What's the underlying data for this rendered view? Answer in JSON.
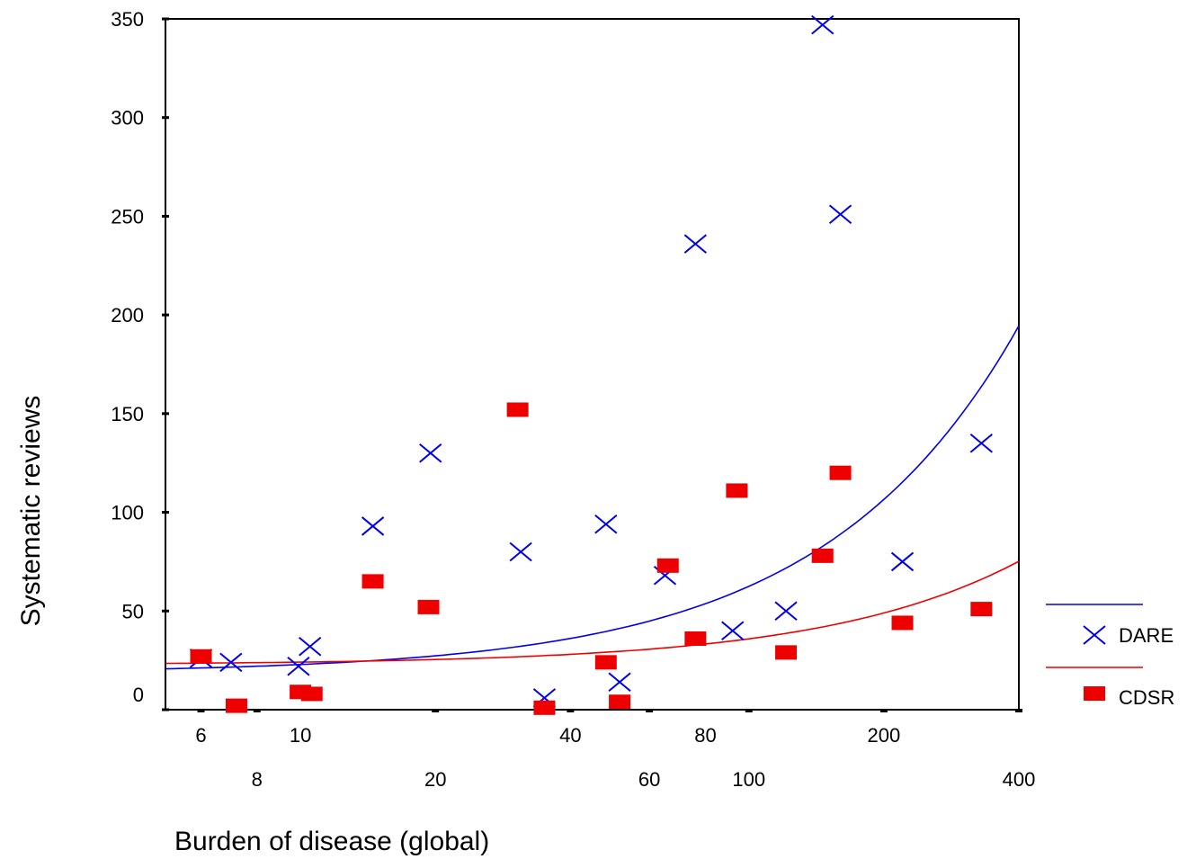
{
  "chart_data": {
    "type": "scatter",
    "xlabel": "Burden of disease (global)",
    "ylabel": "Systematic reviews",
    "x_scale": "log",
    "xlim": [
      5,
      400
    ],
    "ylim": [
      0,
      350
    ],
    "x_ticks_upper": [
      "6",
      "10",
      "40",
      "80",
      "200"
    ],
    "x_ticks_upper_values": [
      6,
      10,
      40,
      80,
      200
    ],
    "x_ticks_lower": [
      "8",
      "20",
      "60",
      "100",
      "400"
    ],
    "x_ticks_lower_values": [
      8,
      20,
      60,
      100,
      400
    ],
    "y_ticks": [
      "0",
      "50",
      "100",
      "150",
      "200",
      "250",
      "300",
      "350"
    ],
    "y_ticks_values": [
      0,
      50,
      100,
      150,
      200,
      250,
      300,
      350
    ],
    "legend_position": "right",
    "grid": false,
    "series": [
      {
        "name": "DARE",
        "marker": "x",
        "color": "#0000ee",
        "points": [
          [
            6,
            26
          ],
          [
            7,
            24
          ],
          [
            9.9,
            22
          ],
          [
            10.5,
            32
          ],
          [
            14.5,
            93
          ],
          [
            19.5,
            130
          ],
          [
            31,
            80
          ],
          [
            35,
            6
          ],
          [
            48,
            94
          ],
          [
            51.5,
            14
          ],
          [
            65,
            68
          ],
          [
            76,
            236
          ],
          [
            92,
            40
          ],
          [
            121,
            50
          ],
          [
            146,
            347
          ],
          [
            160,
            251
          ],
          [
            220,
            75
          ],
          [
            330,
            135
          ]
        ]
      },
      {
        "name": "CDSR",
        "marker": "square",
        "color": "#ee0000",
        "points": [
          [
            6,
            27
          ],
          [
            7.2,
            2
          ],
          [
            10,
            9
          ],
          [
            10.6,
            8
          ],
          [
            14.5,
            65
          ],
          [
            19.3,
            52
          ],
          [
            30.5,
            152
          ],
          [
            35,
            1
          ],
          [
            48,
            24
          ],
          [
            51.5,
            4
          ],
          [
            66,
            73
          ],
          [
            76,
            36
          ],
          [
            94,
            111
          ],
          [
            121,
            29
          ],
          [
            146,
            78
          ],
          [
            160,
            120
          ],
          [
            220,
            44
          ],
          [
            330,
            51
          ]
        ]
      }
    ],
    "fit_lines": [
      {
        "series": "DARE",
        "type": "linear",
        "intercept": 18.5,
        "slope": 0.44,
        "x_range": [
          5,
          400
        ]
      },
      {
        "series": "CDSR",
        "type": "linear",
        "intercept": 22.8,
        "slope": 0.131,
        "x_range": [
          5,
          400
        ]
      }
    ]
  }
}
